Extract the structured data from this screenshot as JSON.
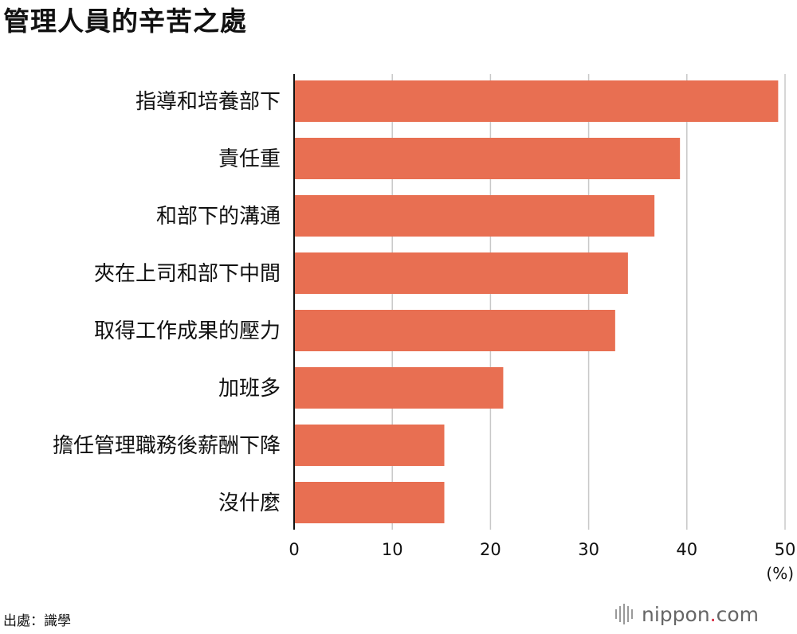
{
  "title": "管理人員的辛苦之處",
  "source": "出處：識學",
  "logo": {
    "prefix": "nippon",
    "dot": ".",
    "suffix": "com"
  },
  "colors": {
    "bar": "#e86f52",
    "grid": "#c8c8c8",
    "axis": "#111111"
  },
  "chart_data": {
    "type": "bar",
    "orientation": "horizontal",
    "categories": [
      "指導和培養部下",
      "責任重",
      "和部下的溝通",
      "夾在上司和部下中間",
      "取得工作成果的壓力",
      "加班多",
      "擔任管理職務後薪酬下降",
      "沒什麼"
    ],
    "values": [
      49.3,
      39.3,
      36.7,
      34.0,
      32.7,
      21.3,
      15.3,
      15.3
    ],
    "xlim": [
      0,
      50
    ],
    "xticks": [
      0,
      10,
      20,
      30,
      40,
      50
    ],
    "xunit": "(%)",
    "grid": true
  }
}
